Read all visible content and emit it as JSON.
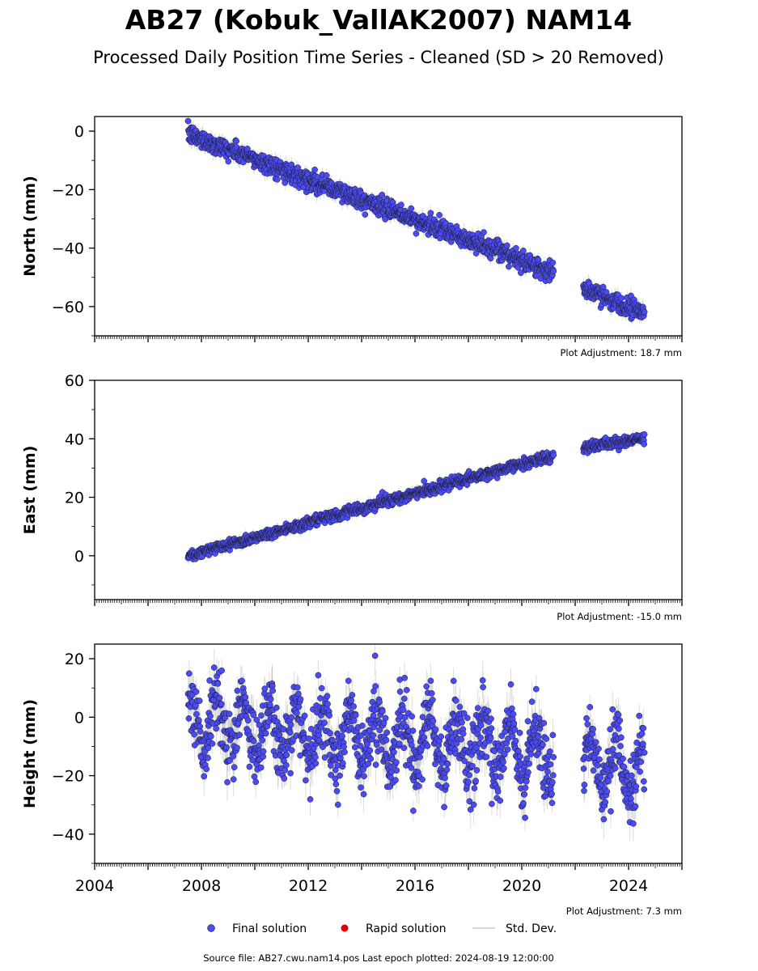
{
  "chart_data": {
    "type": "scatter",
    "title": "AB27 (Kobuk_VallAK2007) NAM14",
    "subtitle": "Processed Daily Position Time Series - Cleaned (SD > 20 Removed)",
    "x_axis": {
      "range": [
        2004,
        2026
      ],
      "ticks": [
        "2004",
        "2008",
        "2012",
        "2016",
        "2020",
        "2024"
      ]
    },
    "panels": [
      {
        "ylabel": "North (mm)",
        "ylim": [
          -70,
          5
        ],
        "yticks": [
          "0",
          "−20",
          "−40",
          "−60"
        ],
        "adjustment": "Plot Adjustment: 18.7 mm",
        "trend": [
          [
            2007.5,
            -1
          ],
          [
            2021.1,
            -48
          ],
          [
            2022.3,
            -54
          ],
          [
            2024.6,
            -62
          ]
        ],
        "scatter_sd": 1.6,
        "error_bar": 2.0
      },
      {
        "ylabel": "East (mm)",
        "ylim": [
          -15,
          60
        ],
        "yticks": [
          "0",
          "20",
          "40",
          "60"
        ],
        "adjustment": "Plot Adjustment: -15.0 mm",
        "trend": [
          [
            2007.5,
            0
          ],
          [
            2021.1,
            34
          ],
          [
            2022.3,
            37
          ],
          [
            2024.6,
            40
          ]
        ],
        "scatter_sd": 0.9,
        "error_bar": 1.5
      },
      {
        "ylabel": "Height (mm)",
        "ylim": [
          -50,
          25
        ],
        "yticks": [
          "20",
          "0",
          "−20",
          "−40"
        ],
        "adjustment": "Plot Adjustment: 7.3 mm",
        "trend": [
          [
            2007.5,
            -2
          ],
          [
            2021.1,
            -12
          ],
          [
            2022.3,
            -16
          ],
          [
            2024.6,
            -18
          ]
        ],
        "seasonal_amplitude": 9,
        "scatter_sd": 6,
        "error_bar": 5
      }
    ],
    "data_gap": [
      2021.2,
      2022.3
    ],
    "legend": {
      "placement": "bottom-center",
      "items": [
        {
          "label": "Final solution",
          "color": "#4b4bf5"
        },
        {
          "label": "Rapid solution",
          "color": "#e00000"
        },
        {
          "label": "Std. Dev.",
          "color": "#c8c8c8"
        }
      ]
    },
    "footer": "Source file: AB27.cwu.nam14.pos  Last epoch plotted: 2024-08-19 12:00:00"
  }
}
